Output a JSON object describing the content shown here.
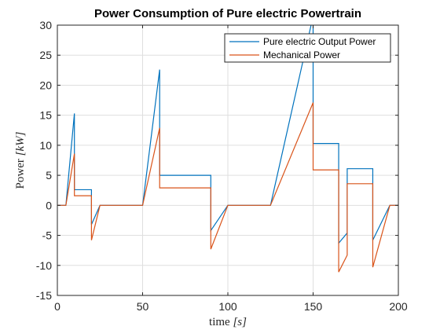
{
  "chart_data": {
    "type": "line",
    "title": "Power Consumption of Pure electric Powertrain",
    "xlabel_main": "time",
    "xlabel_unit": "[s]",
    "ylabel_main": "Power",
    "ylabel_unit": "[kW]",
    "xlim": [
      0,
      200
    ],
    "ylim": [
      -15,
      30
    ],
    "xticks": [
      0,
      50,
      100,
      150,
      200
    ],
    "yticks": [
      -15,
      -10,
      -5,
      0,
      5,
      10,
      15,
      20,
      25,
      30
    ],
    "grid": true,
    "legend_position": "top-right",
    "series": [
      {
        "name": "Pure electric Output Power",
        "color": "#0072BD",
        "x": [
          0,
          5,
          10,
          10,
          20,
          20,
          25,
          50,
          60,
          60,
          90,
          90,
          100,
          125,
          150,
          150,
          165,
          165,
          170,
          170,
          185,
          185,
          195,
          200
        ],
        "y": [
          0,
          0,
          15.3,
          2.6,
          2.6,
          -3.2,
          0,
          0,
          22.6,
          5.0,
          5.0,
          -4.2,
          0,
          0,
          31.5,
          10.3,
          10.3,
          -6.3,
          -4.6,
          6.1,
          6.1,
          -5.8,
          0,
          0
        ]
      },
      {
        "name": "Mechanical Power",
        "color": "#D95319",
        "x": [
          0,
          5,
          10,
          10,
          20,
          20,
          25,
          50,
          60,
          60,
          90,
          90,
          100,
          125,
          150,
          150,
          165,
          165,
          170,
          170,
          185,
          185,
          195,
          200
        ],
        "y": [
          0,
          0,
          8.6,
          1.6,
          1.6,
          -5.8,
          0,
          0,
          12.9,
          2.9,
          2.9,
          -7.3,
          0,
          0,
          17.1,
          5.9,
          5.9,
          -11.1,
          -8.3,
          3.6,
          3.6,
          -10.3,
          0,
          0
        ]
      }
    ]
  }
}
